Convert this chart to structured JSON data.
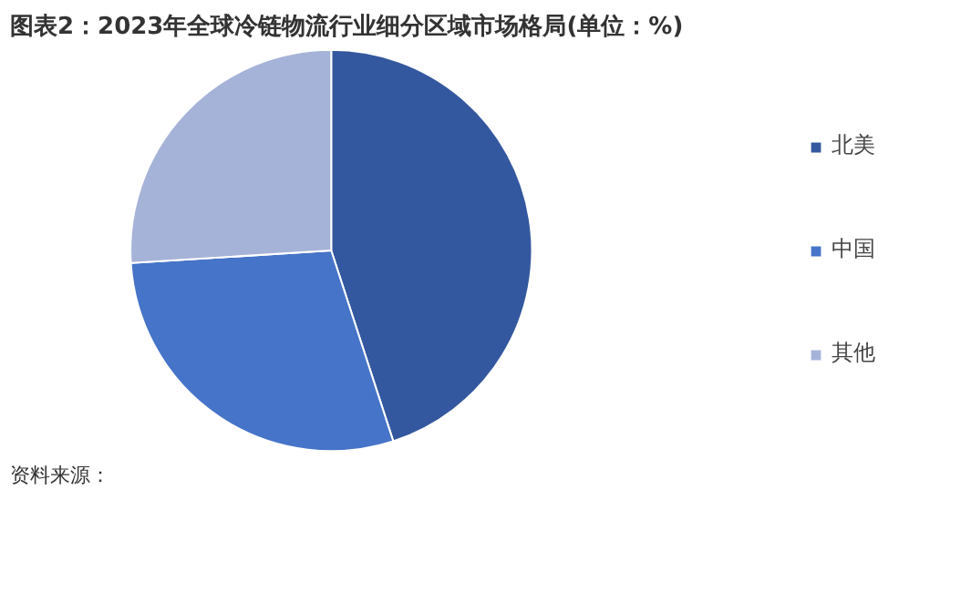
{
  "chart_data": {
    "type": "pie",
    "title": "图表2：2023年全球冷链物流行业细分区域市场格局(单位：%)",
    "categories": [
      "北美",
      "中国",
      "其他"
    ],
    "values": [
      45,
      29,
      26
    ],
    "colors": [
      "#34589f",
      "#4674c8",
      "#a6b3d8"
    ],
    "legend": "right",
    "annotations": [
      "资料来源："
    ]
  }
}
